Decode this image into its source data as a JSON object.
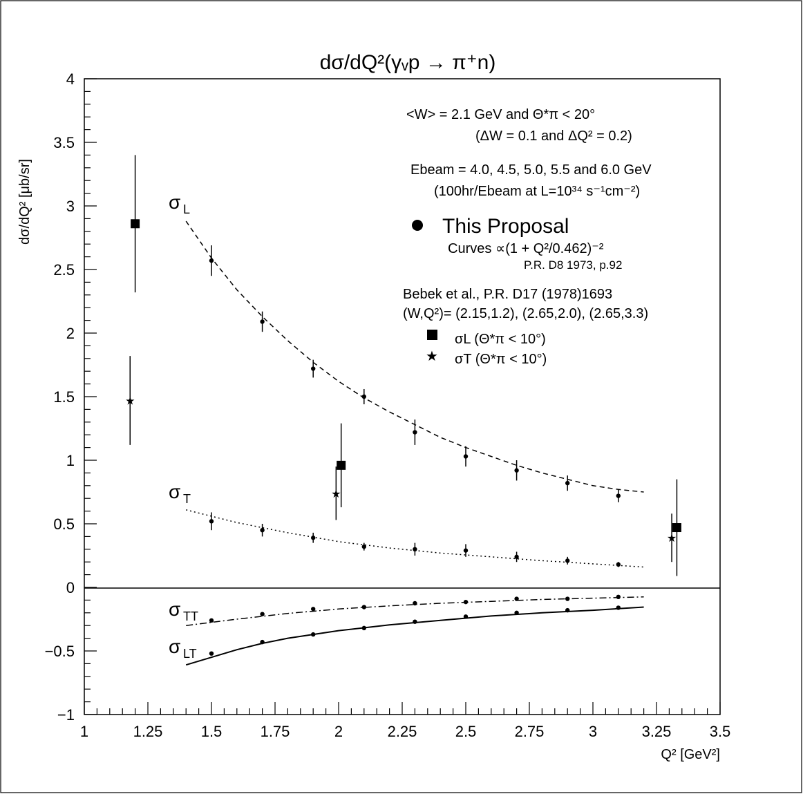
{
  "chart_data": {
    "type": "scatter",
    "title": "dσ/dQ²(γᵥp → π⁺n)",
    "xlabel": "Q² [GeV²]",
    "ylabel": "dσ/dQ² [μb/sr]",
    "xlim": [
      1,
      3.5
    ],
    "ylim": [
      -1,
      4
    ],
    "x_ticks": [
      1,
      1.25,
      1.5,
      1.75,
      2,
      2.25,
      2.5,
      2.75,
      3,
      3.25,
      3.5
    ],
    "x_tick_labels": [
      "1",
      "1.25",
      "1.5",
      "1.75",
      "2",
      "2.25",
      "2.5",
      "2.75",
      "3",
      "3.25",
      "3.5"
    ],
    "y_ticks": [
      -1,
      -0.5,
      0,
      0.5,
      1,
      1.5,
      2,
      2.5,
      3,
      3.5,
      4
    ],
    "y_tick_labels": [
      "−1",
      "−0.5",
      "0",
      "0.5",
      "1",
      "1.5",
      "2",
      "2.5",
      "3",
      "3.5",
      "4"
    ],
    "annotations": [
      "<W> = 2.1 GeV  and  Θ*π < 20°",
      "(ΔW = 0.1  and  ΔQ² = 0.2)",
      "Ebeam = 4.0, 4.5, 5.0, 5.5 and 6.0 GeV",
      "(100hr/Ebeam  at  L=10³⁴ s⁻¹cm⁻²)",
      "This Proposal",
      "Curves  ∝(1 + Q²/0.462)⁻²",
      "P.R. D8 1973, p.92",
      "Bebek et al., P.R. D17 (1978)1693",
      "(W,Q²)= (2.15,1.2), (2.65,2.0), (2.65,3.3)",
      "σL  (Θ*π < 10°)",
      "σT  (Θ*π < 10°)"
    ],
    "curve_labels": [
      {
        "main": "σ",
        "sub": "L"
      },
      {
        "main": "σ",
        "sub": "T"
      },
      {
        "main": "σ",
        "sub": "TT"
      },
      {
        "main": "σ",
        "sub": "LT"
      }
    ],
    "curves": [
      {
        "x": [
          1.4,
          1.5,
          1.6,
          1.7,
          1.8,
          1.9,
          2.0,
          2.1,
          2.2,
          2.3,
          2.4,
          2.5,
          2.6,
          2.7,
          2.8,
          2.9,
          3.0,
          3.1,
          3.2
        ],
        "y": [
          2.88,
          2.59,
          2.34,
          2.13,
          1.94,
          1.77,
          1.62,
          1.49,
          1.38,
          1.28,
          1.18,
          1.1,
          1.03,
          0.96,
          0.9,
          0.85,
          0.8,
          0.77,
          0.75
        ],
        "style": "dashed"
      },
      {
        "x": [
          1.4,
          1.6,
          1.8,
          2.0,
          2.2,
          2.4,
          2.6,
          2.8,
          3.0,
          3.2
        ],
        "y": [
          0.61,
          0.51,
          0.43,
          0.36,
          0.31,
          0.27,
          0.24,
          0.21,
          0.185,
          0.16
        ],
        "style": "dotted"
      },
      {
        "x": [
          1.4,
          1.6,
          1.8,
          2.0,
          2.2,
          2.4,
          2.6,
          2.8,
          3.0,
          3.2
        ],
        "y": [
          -0.3,
          -0.25,
          -0.205,
          -0.17,
          -0.145,
          -0.125,
          -0.11,
          -0.095,
          -0.085,
          -0.075
        ],
        "style": "dashdot"
      },
      {
        "x": [
          1.4,
          1.5,
          1.6,
          1.7,
          1.8,
          1.9,
          2.0,
          2.2,
          2.4,
          2.6,
          2.8,
          3.0,
          3.2
        ],
        "y": [
          -0.61,
          -0.55,
          -0.49,
          -0.44,
          -0.4,
          -0.37,
          -0.34,
          -0.295,
          -0.26,
          -0.225,
          -0.2,
          -0.18,
          -0.155
        ],
        "style": "solid"
      }
    ],
    "series": [
      {
        "name": "This Proposal",
        "marker": "circle",
        "x": [
          1.5,
          1.7,
          1.9,
          2.1,
          2.3,
          2.5,
          2.7,
          2.9,
          3.1
        ],
        "y": [
          2.57,
          2.09,
          1.72,
          1.5,
          1.22,
          1.03,
          0.92,
          0.82,
          0.72
        ],
        "err": [
          0.12,
          0.08,
          0.07,
          0.06,
          0.1,
          0.08,
          0.08,
          0.06,
          0.05
        ]
      },
      {
        "name": "This Proposal",
        "marker": "circle",
        "x": [
          1.5,
          1.7,
          1.9,
          2.1,
          2.3,
          2.5,
          2.7,
          2.9,
          3.1
        ],
        "y": [
          0.52,
          0.45,
          0.39,
          0.32,
          0.3,
          0.29,
          0.24,
          0.21,
          0.18
        ],
        "err": [
          0.07,
          0.05,
          0.04,
          0.03,
          0.05,
          0.05,
          0.04,
          0.03,
          0.02
        ]
      },
      {
        "name": "This Proposal",
        "marker": "circle",
        "x": [
          1.5,
          1.7,
          1.9,
          2.1,
          2.3,
          2.5,
          2.7,
          2.9,
          3.1
        ],
        "y": [
          -0.26,
          -0.21,
          -0.17,
          -0.155,
          -0.125,
          -0.115,
          -0.09,
          -0.09,
          -0.075
        ],
        "err": [
          0,
          0,
          0,
          0,
          0,
          0,
          0,
          0,
          0
        ]
      },
      {
        "name": "This Proposal",
        "marker": "circle",
        "x": [
          1.5,
          1.7,
          1.9,
          2.1,
          2.3,
          2.5,
          2.7,
          2.9,
          3.1
        ],
        "y": [
          -0.52,
          -0.43,
          -0.37,
          -0.32,
          -0.27,
          -0.23,
          -0.2,
          -0.18,
          -0.16
        ],
        "err": [
          0,
          0,
          0,
          0,
          0,
          0,
          0,
          0,
          0
        ]
      },
      {
        "name": "σL  (Θ*π < 10°)",
        "marker": "square",
        "x": [
          1.2,
          2.01,
          3.33
        ],
        "y": [
          2.86,
          0.96,
          0.47
        ],
        "err": [
          0.54,
          0.33,
          0.38
        ]
      },
      {
        "name": "σT  (Θ*π < 10°)",
        "marker": "star",
        "x": [
          1.18,
          1.99,
          3.31
        ],
        "y": [
          1.47,
          0.74,
          0.39
        ],
        "err": [
          0.35,
          0.21,
          0.19
        ]
      }
    ]
  }
}
